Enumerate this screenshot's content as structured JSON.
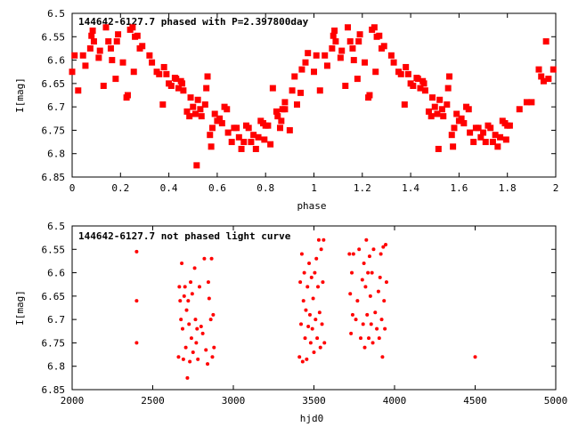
{
  "chart_data": [
    {
      "type": "scatter",
      "title": "144642-6127.7 phased with P=2.397800day",
      "xlabel": "phase",
      "ylabel": "I[mag]",
      "xlim": [
        0,
        2
      ],
      "ylim": [
        6.85,
        6.5
      ],
      "y_inverted": true,
      "grid": false,
      "marker_color": "#ff0000",
      "marker": "filled-star",
      "x_ticks": [
        "0",
        "0.2",
        "0.4",
        "0.6",
        "0.8",
        "1",
        "1.2",
        "1.4",
        "1.6",
        "1.8",
        "2"
      ],
      "y_ticks": [
        "6.5",
        "6.55",
        "6.6",
        "6.65",
        "6.7",
        "6.75",
        "6.8",
        "6.85"
      ],
      "points": [
        [
          0.0,
          6.625
        ],
        [
          0.01,
          6.59
        ],
        [
          0.025,
          6.665
        ],
        [
          0.045,
          6.59
        ],
        [
          0.055,
          6.612
        ],
        [
          0.075,
          6.575
        ],
        [
          0.08,
          6.548
        ],
        [
          0.085,
          6.537
        ],
        [
          0.09,
          6.56
        ],
        [
          0.11,
          6.595
        ],
        [
          0.115,
          6.58
        ],
        [
          0.13,
          6.655
        ],
        [
          0.14,
          6.53
        ],
        [
          0.15,
          6.56
        ],
        [
          0.16,
          6.575
        ],
        [
          0.165,
          6.6
        ],
        [
          0.18,
          6.64
        ],
        [
          0.185,
          6.56
        ],
        [
          0.19,
          6.545
        ],
        [
          0.21,
          6.605
        ],
        [
          0.225,
          6.68
        ],
        [
          0.23,
          6.675
        ],
        [
          0.24,
          6.535
        ],
        [
          0.25,
          6.53
        ],
        [
          0.255,
          6.625
        ],
        [
          0.26,
          6.55
        ],
        [
          0.27,
          6.548
        ],
        [
          0.28,
          6.575
        ],
        [
          0.29,
          6.57
        ],
        [
          0.32,
          6.59
        ],
        [
          0.33,
          6.605
        ],
        [
          0.35,
          6.625
        ],
        [
          0.36,
          6.63
        ],
        [
          0.375,
          6.695
        ],
        [
          0.38,
          6.615
        ],
        [
          0.39,
          6.63
        ],
        [
          0.4,
          6.65
        ],
        [
          0.41,
          6.655
        ],
        [
          0.425,
          6.638
        ],
        [
          0.43,
          6.64
        ],
        [
          0.44,
          6.66
        ],
        [
          0.45,
          6.645
        ],
        [
          0.455,
          6.65
        ],
        [
          0.46,
          6.665
        ],
        [
          0.475,
          6.71
        ],
        [
          0.485,
          6.72
        ],
        [
          0.49,
          6.68
        ],
        [
          0.5,
          6.7
        ],
        [
          0.51,
          6.715
        ],
        [
          0.515,
          6.825
        ],
        [
          0.52,
          6.685
        ],
        [
          0.53,
          6.705
        ],
        [
          0.535,
          6.72
        ],
        [
          0.55,
          6.695
        ],
        [
          0.555,
          6.66
        ],
        [
          0.56,
          6.635
        ],
        [
          0.57,
          6.76
        ],
        [
          0.575,
          6.785
        ],
        [
          0.58,
          6.745
        ],
        [
          0.59,
          6.715
        ],
        [
          0.6,
          6.73
        ],
        [
          0.61,
          6.725
        ],
        [
          0.62,
          6.735
        ],
        [
          0.63,
          6.7
        ],
        [
          0.64,
          6.705
        ],
        [
          0.645,
          6.755
        ],
        [
          0.66,
          6.775
        ],
        [
          0.67,
          6.745
        ],
        [
          0.68,
          6.745
        ],
        [
          0.69,
          6.765
        ],
        [
          0.7,
          6.79
        ],
        [
          0.71,
          6.775
        ],
        [
          0.72,
          6.74
        ],
        [
          0.73,
          6.745
        ],
        [
          0.74,
          6.775
        ],
        [
          0.75,
          6.76
        ],
        [
          0.76,
          6.79
        ],
        [
          0.77,
          6.765
        ],
        [
          0.78,
          6.73
        ],
        [
          0.79,
          6.735
        ],
        [
          0.795,
          6.77
        ],
        [
          0.8,
          6.74
        ],
        [
          0.81,
          6.74
        ],
        [
          0.82,
          6.78
        ],
        [
          0.83,
          6.66
        ],
        [
          0.845,
          6.71
        ],
        [
          0.85,
          6.72
        ],
        [
          0.86,
          6.745
        ],
        [
          0.865,
          6.73
        ],
        [
          0.87,
          6.705
        ],
        [
          0.88,
          6.69
        ],
        [
          0.88,
          6.705
        ],
        [
          0.9,
          6.75
        ],
        [
          0.91,
          6.665
        ],
        [
          0.92,
          6.635
        ],
        [
          0.93,
          6.695
        ],
        [
          0.945,
          6.67
        ],
        [
          0.95,
          6.62
        ],
        [
          0.965,
          6.605
        ],
        [
          0.975,
          6.585
        ],
        [
          1.0,
          6.625
        ],
        [
          1.01,
          6.59
        ],
        [
          1.025,
          6.665
        ],
        [
          1.045,
          6.59
        ],
        [
          1.055,
          6.612
        ],
        [
          1.075,
          6.575
        ],
        [
          1.08,
          6.548
        ],
        [
          1.085,
          6.537
        ],
        [
          1.09,
          6.56
        ],
        [
          1.11,
          6.595
        ],
        [
          1.115,
          6.58
        ],
        [
          1.13,
          6.655
        ],
        [
          1.14,
          6.53
        ],
        [
          1.15,
          6.56
        ],
        [
          1.16,
          6.575
        ],
        [
          1.165,
          6.6
        ],
        [
          1.18,
          6.64
        ],
        [
          1.185,
          6.56
        ],
        [
          1.19,
          6.545
        ],
        [
          1.21,
          6.605
        ],
        [
          1.225,
          6.68
        ],
        [
          1.23,
          6.675
        ],
        [
          1.24,
          6.535
        ],
        [
          1.25,
          6.53
        ],
        [
          1.255,
          6.625
        ],
        [
          1.26,
          6.55
        ],
        [
          1.27,
          6.548
        ],
        [
          1.28,
          6.575
        ],
        [
          1.29,
          6.57
        ],
        [
          1.32,
          6.59
        ],
        [
          1.33,
          6.605
        ],
        [
          1.35,
          6.625
        ],
        [
          1.36,
          6.63
        ],
        [
          1.375,
          6.695
        ],
        [
          1.38,
          6.615
        ],
        [
          1.39,
          6.63
        ],
        [
          1.4,
          6.65
        ],
        [
          1.41,
          6.655
        ],
        [
          1.425,
          6.638
        ],
        [
          1.43,
          6.64
        ],
        [
          1.44,
          6.66
        ],
        [
          1.45,
          6.645
        ],
        [
          1.455,
          6.65
        ],
        [
          1.46,
          6.665
        ],
        [
          1.475,
          6.71
        ],
        [
          1.485,
          6.72
        ],
        [
          1.49,
          6.68
        ],
        [
          1.5,
          6.7
        ],
        [
          1.51,
          6.715
        ],
        [
          1.515,
          6.79
        ],
        [
          1.52,
          6.685
        ],
        [
          1.53,
          6.705
        ],
        [
          1.535,
          6.72
        ],
        [
          1.55,
          6.695
        ],
        [
          1.555,
          6.66
        ],
        [
          1.56,
          6.635
        ],
        [
          1.57,
          6.76
        ],
        [
          1.575,
          6.785
        ],
        [
          1.58,
          6.745
        ],
        [
          1.59,
          6.715
        ],
        [
          1.6,
          6.73
        ],
        [
          1.61,
          6.725
        ],
        [
          1.62,
          6.735
        ],
        [
          1.63,
          6.7
        ],
        [
          1.64,
          6.705
        ],
        [
          1.645,
          6.755
        ],
        [
          1.66,
          6.775
        ],
        [
          1.67,
          6.745
        ],
        [
          1.68,
          6.745
        ],
        [
          1.69,
          6.765
        ],
        [
          1.7,
          6.755
        ],
        [
          1.71,
          6.775
        ],
        [
          1.72,
          6.74
        ],
        [
          1.73,
          6.745
        ],
        [
          1.74,
          6.775
        ],
        [
          1.75,
          6.76
        ],
        [
          1.76,
          6.785
        ],
        [
          1.77,
          6.765
        ],
        [
          1.78,
          6.73
        ],
        [
          1.79,
          6.735
        ],
        [
          1.795,
          6.77
        ],
        [
          1.8,
          6.74
        ],
        [
          1.81,
          6.74
        ],
        [
          1.85,
          6.705
        ],
        [
          1.88,
          6.69
        ],
        [
          1.9,
          6.69
        ],
        [
          1.93,
          6.62
        ],
        [
          1.94,
          6.635
        ],
        [
          1.95,
          6.645
        ],
        [
          1.96,
          6.56
        ],
        [
          1.97,
          6.64
        ],
        [
          1.99,
          6.62
        ]
      ]
    },
    {
      "type": "scatter",
      "title": "144642-6127.7 not phased light curve",
      "xlabel": "hjd0",
      "ylabel": "I[mag]",
      "xlim": [
        2000,
        5000
      ],
      "ylim": [
        6.85,
        6.5
      ],
      "y_inverted": true,
      "grid": false,
      "marker_color": "#ff0000",
      "marker": "small-dot",
      "x_ticks": [
        "2000",
        "2500",
        "3000",
        "3500",
        "4000",
        "4500",
        "5000"
      ],
      "y_ticks": [
        "6.5",
        "6.55",
        "6.6",
        "6.65",
        "6.7",
        "6.75",
        "6.8",
        "6.85"
      ],
      "points": [
        [
          2400,
          6.555
        ],
        [
          2400,
          6.66
        ],
        [
          2400,
          6.75
        ],
        [
          2660,
          6.78
        ],
        [
          2665,
          6.63
        ],
        [
          2670,
          6.66
        ],
        [
          2675,
          6.7
        ],
        [
          2680,
          6.58
        ],
        [
          2685,
          6.72
        ],
        [
          2690,
          6.785
        ],
        [
          2695,
          6.65
        ],
        [
          2700,
          6.63
        ],
        [
          2705,
          6.76
        ],
        [
          2710,
          6.68
        ],
        [
          2715,
          6.825
        ],
        [
          2720,
          6.66
        ],
        [
          2725,
          6.71
        ],
        [
          2730,
          6.79
        ],
        [
          2735,
          6.62
        ],
        [
          2740,
          6.74
        ],
        [
          2745,
          6.645
        ],
        [
          2750,
          6.77
        ],
        [
          2760,
          6.59
        ],
        [
          2765,
          6.7
        ],
        [
          2770,
          6.75
        ],
        [
          2775,
          6.72
        ],
        [
          2780,
          6.785
        ],
        [
          2790,
          6.63
        ],
        [
          2800,
          6.715
        ],
        [
          2810,
          6.73
        ],
        [
          2820,
          6.57
        ],
        [
          2830,
          6.765
        ],
        [
          2840,
          6.795
        ],
        [
          2845,
          6.62
        ],
        [
          2850,
          6.655
        ],
        [
          2860,
          6.7
        ],
        [
          2865,
          6.57
        ],
        [
          2870,
          6.78
        ],
        [
          2875,
          6.69
        ],
        [
          2880,
          6.76
        ],
        [
          3410,
          6.78
        ],
        [
          3415,
          6.62
        ],
        [
          3420,
          6.71
        ],
        [
          3425,
          6.56
        ],
        [
          3430,
          6.79
        ],
        [
          3435,
          6.66
        ],
        [
          3440,
          6.6
        ],
        [
          3445,
          6.74
        ],
        [
          3450,
          6.68
        ],
        [
          3455,
          6.785
        ],
        [
          3460,
          6.63
        ],
        [
          3465,
          6.715
        ],
        [
          3470,
          6.58
        ],
        [
          3475,
          6.69
        ],
        [
          3480,
          6.75
        ],
        [
          3485,
          6.61
        ],
        [
          3490,
          6.72
        ],
        [
          3495,
          6.655
        ],
        [
          3500,
          6.77
        ],
        [
          3505,
          6.6
        ],
        [
          3510,
          6.7
        ],
        [
          3515,
          6.57
        ],
        [
          3520,
          6.74
        ],
        [
          3525,
          6.63
        ],
        [
          3530,
          6.53
        ],
        [
          3535,
          6.685
        ],
        [
          3540,
          6.76
        ],
        [
          3545,
          6.55
        ],
        [
          3550,
          6.71
        ],
        [
          3555,
          6.62
        ],
        [
          3560,
          6.53
        ],
        [
          3565,
          6.75
        ],
        [
          3720,
          6.56
        ],
        [
          3725,
          6.645
        ],
        [
          3730,
          6.73
        ],
        [
          3735,
          6.6
        ],
        [
          3740,
          6.69
        ],
        [
          3745,
          6.56
        ],
        [
          3760,
          6.7
        ],
        [
          3770,
          6.66
        ],
        [
          3780,
          6.55
        ],
        [
          3790,
          6.74
        ],
        [
          3800,
          6.615
        ],
        [
          3805,
          6.71
        ],
        [
          3810,
          6.58
        ],
        [
          3815,
          6.76
        ],
        [
          3820,
          6.63
        ],
        [
          3825,
          6.53
        ],
        [
          3830,
          6.69
        ],
        [
          3835,
          6.6
        ],
        [
          3840,
          6.74
        ],
        [
          3845,
          6.565
        ],
        [
          3850,
          6.65
        ],
        [
          3855,
          6.71
        ],
        [
          3860,
          6.6
        ],
        [
          3865,
          6.75
        ],
        [
          3870,
          6.55
        ],
        [
          3880,
          6.685
        ],
        [
          3890,
          6.72
        ],
        [
          3900,
          6.64
        ],
        [
          3905,
          6.74
        ],
        [
          3910,
          6.61
        ],
        [
          3915,
          6.56
        ],
        [
          3920,
          6.7
        ],
        [
          3925,
          6.78
        ],
        [
          3930,
          6.545
        ],
        [
          3935,
          6.66
        ],
        [
          3940,
          6.72
        ],
        [
          3945,
          6.54
        ],
        [
          3950,
          6.62
        ],
        [
          4500,
          6.78
        ]
      ]
    }
  ]
}
